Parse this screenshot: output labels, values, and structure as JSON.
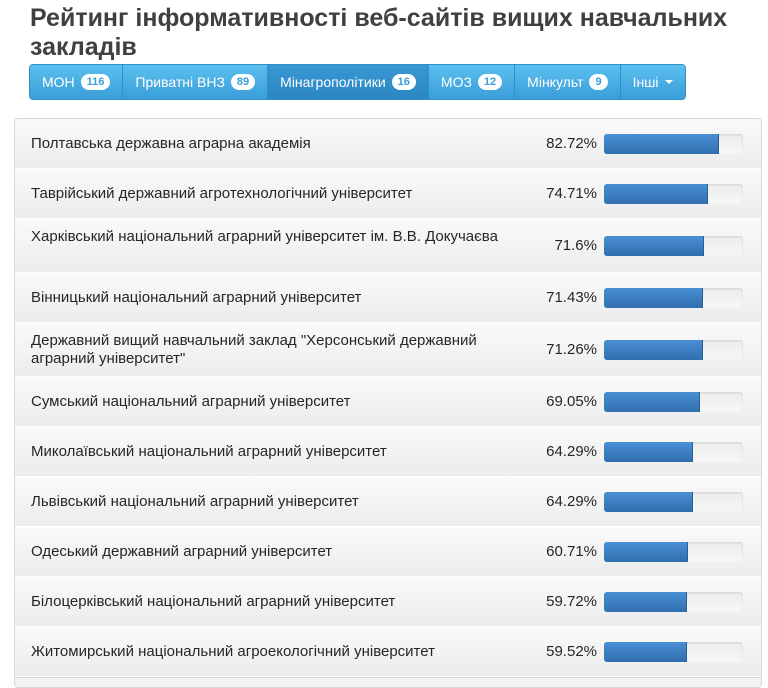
{
  "page": {
    "title": "Рейтинг інформативності веб-сайтів вищих навчальних закладів"
  },
  "tabs": [
    {
      "label": "МОН",
      "count": "116",
      "active": false
    },
    {
      "label": "Приватні ВНЗ",
      "count": "89",
      "active": false
    },
    {
      "label": "Мінагрополітики",
      "count": "16",
      "active": true
    },
    {
      "label": "МОЗ",
      "count": "12",
      "active": false
    },
    {
      "label": "Мінкульт",
      "count": "9",
      "active": false
    },
    {
      "label": "Інші",
      "count": "",
      "active": false,
      "dropdown": true
    }
  ],
  "ranking": [
    {
      "name": "Полтавська державна аграрна академія",
      "percent": "82.72%",
      "value": 82.72
    },
    {
      "name": "Таврійський державний агротехнологічний університет",
      "percent": "74.71%",
      "value": 74.71
    },
    {
      "name": "Харківський національний аграрний університет ім. В.В. Докучаєва",
      "percent": "71.6%",
      "value": 71.6
    },
    {
      "name": "Вінницький національний аграрний університет",
      "percent": "71.43%",
      "value": 71.43
    },
    {
      "name": "Державний вищий навчальний заклад \"Херсонський державний аграрний університет\"",
      "percent": "71.26%",
      "value": 71.26
    },
    {
      "name": "Сумський національний аграрний університет",
      "percent": "69.05%",
      "value": 69.05
    },
    {
      "name": "Миколаївський національний аграрний університет",
      "percent": "64.29%",
      "value": 64.29
    },
    {
      "name": "Львівський національний аграрний університет",
      "percent": "64.29%",
      "value": 64.29
    },
    {
      "name": "Одеський державний аграрний університет",
      "percent": "60.71%",
      "value": 60.71
    },
    {
      "name": "Білоцерківський національний аграрний університет",
      "percent": "59.72%",
      "value": 59.72
    },
    {
      "name": "Житомирський національний агроекологічний університет",
      "percent": "59.52%",
      "value": 59.52
    }
  ],
  "colors": {
    "tab_bg": "#4aaee5",
    "tab_active_bg": "#3190cc",
    "bar_fill": "#3b7ec4"
  }
}
